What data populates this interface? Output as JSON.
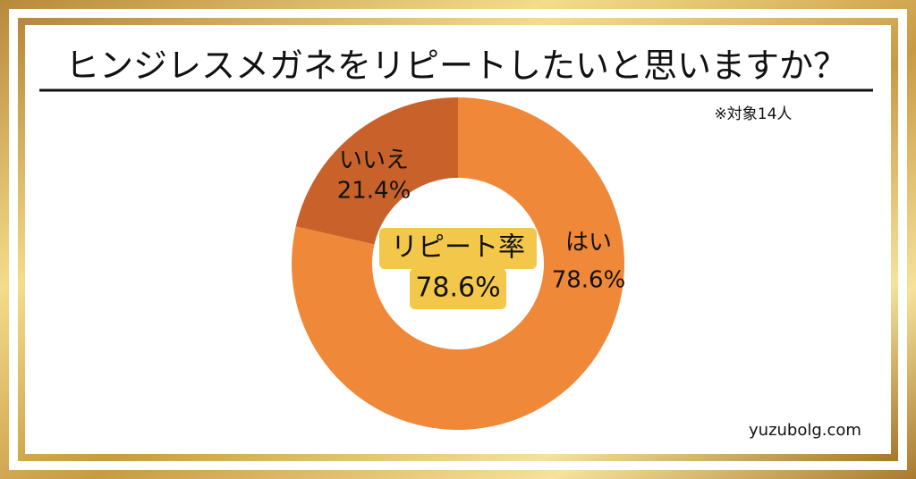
{
  "chart_data": {
    "type": "donut",
    "title": "ヒンジレスメガネをリピートしたいと思いますか？",
    "note": "※対象14人",
    "categories": [
      "はい",
      "いいえ"
    ],
    "values": [
      78.6,
      21.4
    ],
    "value_labels": [
      "78.6%",
      "21.4%"
    ],
    "colors": [
      "#F0883A",
      "#C8622A"
    ],
    "center_label": "リピート率",
    "center_value_label": "78.6%",
    "source": "yuzubolg.com"
  }
}
